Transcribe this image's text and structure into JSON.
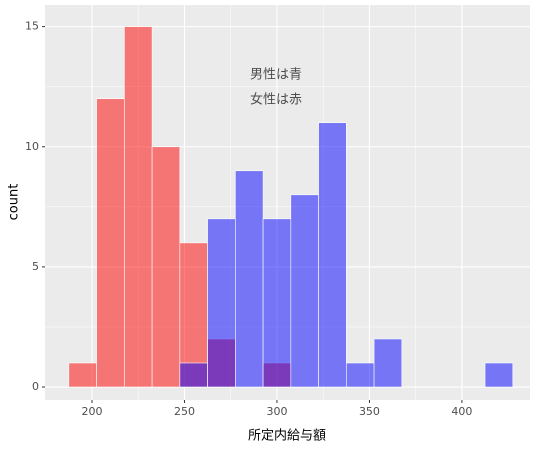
{
  "chart_data": {
    "type": "histogram",
    "x_label": "所定内給与額",
    "y_label": "count",
    "bins": [
      187.5,
      202.5,
      217.5,
      232.5,
      247.5,
      262.5,
      277.5,
      292.5,
      307.5,
      322.5,
      337.5,
      352.5,
      367.5,
      382.5,
      397.5,
      412.5,
      427.5
    ],
    "series": [
      {
        "color": "#ff0000",
        "values": [
          1,
          12,
          15,
          10,
          6,
          2,
          0,
          1,
          0,
          0,
          0,
          0,
          0,
          0,
          0,
          0
        ]
      },
      {
        "color": "#0000ff",
        "values": [
          0,
          0,
          0,
          0,
          1,
          7,
          9,
          7,
          8,
          11,
          1,
          2,
          0,
          0,
          0,
          1
        ]
      }
    ],
    "annotations": [
      {
        "text": "男性は青",
        "color": "#0000cc"
      },
      {
        "text": "女性は赤",
        "color": "#cc0000"
      }
    ],
    "xlim": [
      174.6,
      436.8
    ],
    "ylim": [
      -0.54,
      15.9
    ],
    "xticks": [
      200,
      250,
      300,
      350,
      400
    ],
    "yticks": [
      0,
      5,
      10,
      15
    ],
    "grid": true
  }
}
